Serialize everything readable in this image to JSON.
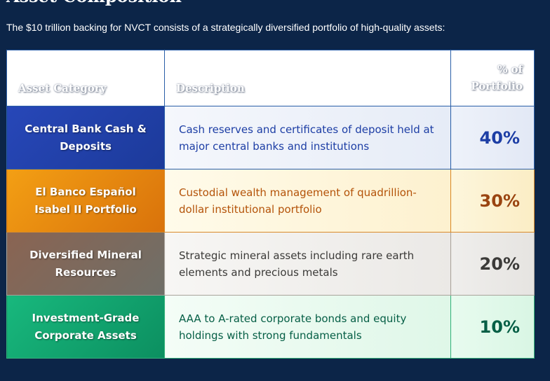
{
  "section": {
    "heading": "Asset Composition",
    "intro": "The $10 trillion backing for NVCT consists of a strategically diversified portfolio of high-quality assets:"
  },
  "table": {
    "headers": {
      "category": "Asset Category",
      "description": "Description",
      "percent_line1": "% of",
      "percent_line2": "Portfolio"
    },
    "rows": [
      {
        "category": "Central Bank Cash & Deposits",
        "description": "Cash reserves and certificates of deposit held at major central banks and institutions",
        "percent": "40%",
        "accent": "#1d3ea5"
      },
      {
        "category": "El Banco Español Isabel II Portfolio",
        "description": "Custodial wealth management of quadrillion-dollar institutional portfolio",
        "percent": "30%",
        "accent": "#d9720b"
      },
      {
        "category": "Diversified Mineral Resources",
        "description": "Strategic mineral assets including rare earth elements and precious metals",
        "percent": "20%",
        "accent": "#7a6a5e"
      },
      {
        "category": "Investment-Grade Corporate Assets",
        "description": "AAA to A-rated corporate bonds and equity holdings with strong fundamentals",
        "percent": "10%",
        "accent": "#0c8f60"
      }
    ]
  },
  "colors": {
    "page_background": "#0c2548",
    "header_border": "#2a5fa8"
  }
}
